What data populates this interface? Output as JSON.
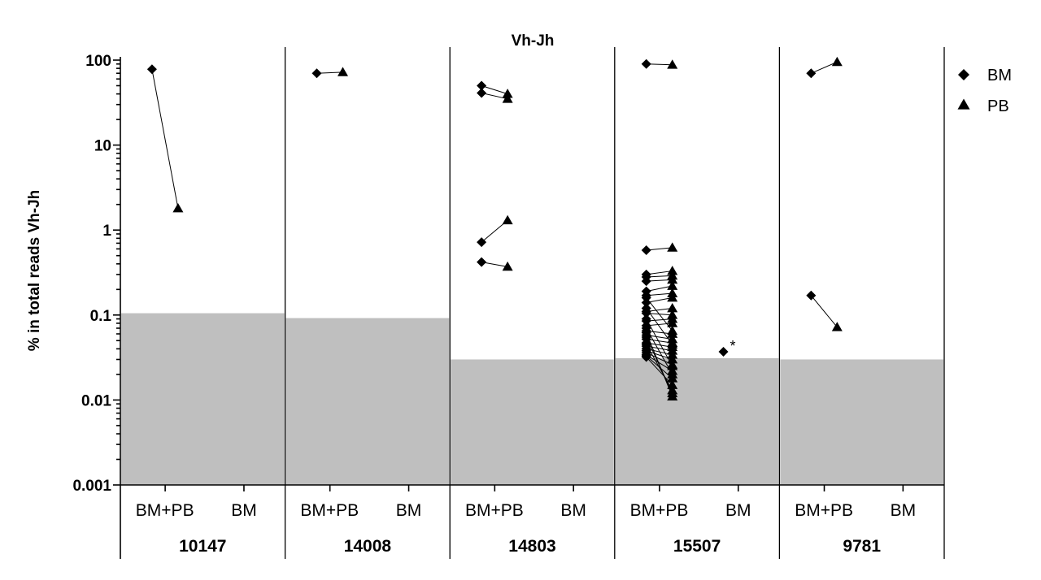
{
  "chart_data": {
    "type": "scatter",
    "title": "Vh-Jh",
    "ylabel": "% in total reads Vh-Jh",
    "xlabel": "",
    "yscale": "log",
    "ylim": [
      0.001,
      100
    ],
    "yticks": [
      {
        "value": 100,
        "label": "100"
      },
      {
        "value": 10,
        "label": "10"
      },
      {
        "value": 1,
        "label": "1"
      },
      {
        "value": 0.1,
        "label": "0.1"
      },
      {
        "value": 0.01,
        "label": "0.01"
      },
      {
        "value": 0.001,
        "label": "0.001"
      }
    ],
    "grid": false,
    "legend": {
      "position": "top-right",
      "entries": [
        {
          "name": "BM",
          "marker": "diamond"
        },
        {
          "name": "PB",
          "marker": "triangle"
        }
      ]
    },
    "categories": [
      "BM+PB",
      "BM"
    ],
    "groups": [
      {
        "label": "10147",
        "threshold": 0.105,
        "pairs": [
          [
            78,
            1.8
          ]
        ],
        "bm_only": []
      },
      {
        "label": "14008",
        "threshold": 0.092,
        "pairs": [
          [
            70,
            72
          ]
        ],
        "bm_only": []
      },
      {
        "label": "14803",
        "threshold": 0.03,
        "pairs": [
          [
            50,
            40
          ],
          [
            41,
            35
          ],
          [
            0.72,
            1.3
          ],
          [
            0.42,
            0.37
          ]
        ],
        "bm_only": []
      },
      {
        "label": "15507",
        "threshold": 0.031,
        "pairs": [
          [
            90,
            88
          ],
          [
            0.58,
            0.62
          ],
          [
            0.3,
            0.33
          ],
          [
            0.28,
            0.29
          ],
          [
            0.25,
            0.26
          ],
          [
            0.19,
            0.22
          ],
          [
            0.17,
            0.18
          ],
          [
            0.14,
            0.16
          ],
          [
            0.11,
            0.12
          ],
          [
            0.105,
            0.1
          ],
          [
            0.085,
            0.09
          ],
          [
            0.075,
            0.08
          ],
          [
            0.065,
            0.06
          ],
          [
            0.058,
            0.052
          ],
          [
            0.052,
            0.047
          ],
          [
            0.047,
            0.042
          ],
          [
            0.043,
            0.038
          ],
          [
            0.04,
            0.034
          ],
          [
            0.038,
            0.03
          ],
          [
            0.036,
            0.026
          ],
          [
            0.034,
            0.022
          ],
          [
            0.033,
            0.018
          ],
          [
            0.032,
            0.015
          ],
          [
            0.045,
            0.013
          ],
          [
            0.055,
            0.012
          ],
          [
            0.062,
            0.011
          ],
          [
            0.07,
            0.02
          ],
          [
            0.09,
            0.025
          ],
          [
            0.12,
            0.045
          ],
          [
            0.16,
            0.065
          ]
        ],
        "bm_only": [
          0.037
        ],
        "annotation": "*"
      },
      {
        "label": "9781",
        "threshold": 0.03,
        "pairs": [
          [
            70,
            95
          ],
          [
            0.17,
            0.072
          ]
        ],
        "bm_only": []
      }
    ]
  }
}
